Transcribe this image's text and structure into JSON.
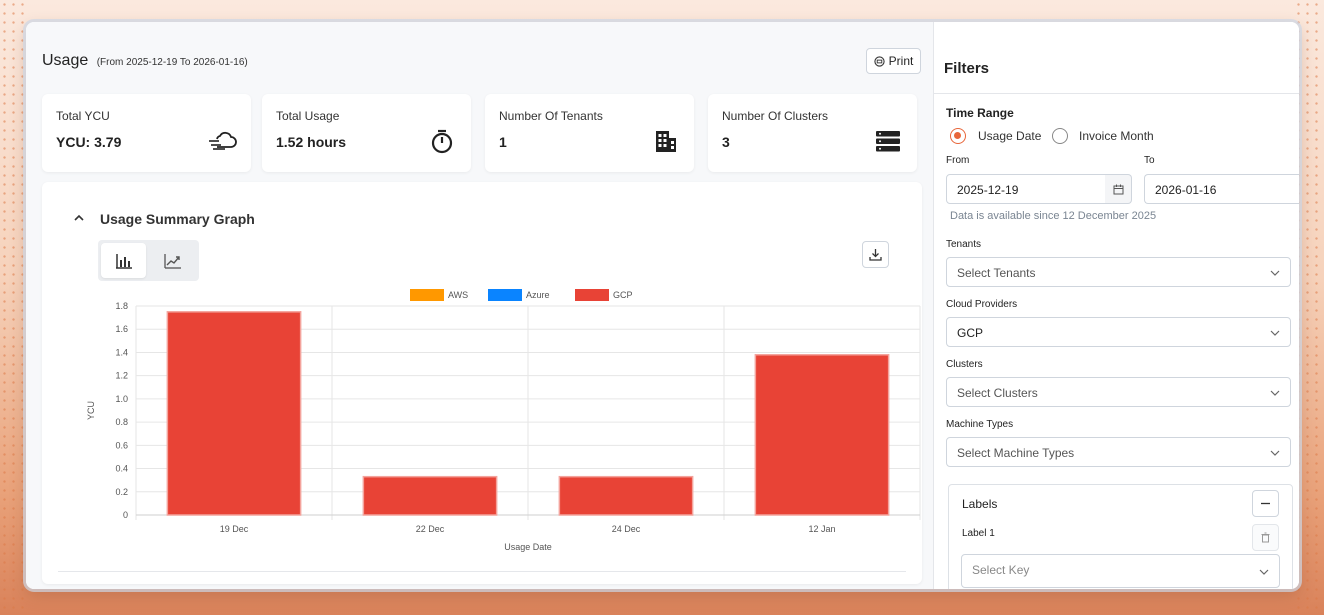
{
  "header": {
    "title": "Usage",
    "range": "(From 2025-12-19 To 2026-01-16)",
    "print_label": "Print"
  },
  "cards": [
    {
      "label": "Total YCU",
      "value": "YCU: 3.79",
      "icon": "cloud-speed-icon"
    },
    {
      "label": "Total Usage",
      "value": "1.52 hours",
      "icon": "stopwatch-icon"
    },
    {
      "label": "Number Of Tenants",
      "value": "1",
      "icon": "building-icon"
    },
    {
      "label": "Number Of Clusters",
      "value": "3",
      "icon": "server-stack-icon"
    }
  ],
  "graph": {
    "title": "Usage Summary Graph",
    "view_options": [
      "bar-chart-icon",
      "line-chart-icon"
    ],
    "active_view": "bar"
  },
  "chart_data": {
    "type": "bar",
    "categories": [
      "19 Dec",
      "22 Dec",
      "24 Dec",
      "12 Jan"
    ],
    "series": [
      {
        "name": "AWS",
        "color": "#ff9800",
        "values": [
          0,
          0,
          0,
          0
        ]
      },
      {
        "name": "Azure",
        "color": "#0a84ff",
        "values": [
          0,
          0,
          0,
          0
        ]
      },
      {
        "name": "GCP",
        "color": "#e84336",
        "values": [
          1.75,
          0.33,
          0.33,
          1.38
        ]
      }
    ],
    "xlabel": "Usage Date",
    "ylabel": "YCU",
    "ylim": [
      0,
      1.8
    ],
    "yticks": [
      "0",
      "0.2",
      "0.4",
      "0.6",
      "0.8",
      "1.0",
      "1.2",
      "1.4",
      "1.6",
      "1.8"
    ],
    "grid": true,
    "legend_position": "top"
  },
  "filters": {
    "title": "Filters",
    "time_range_label": "Time Range",
    "radio_options": [
      "Usage Date",
      "Invoice Month"
    ],
    "radio_selected": "Usage Date",
    "from_label": "From",
    "to_label": "To",
    "from_value": "2025-12-19",
    "to_value": "2026-01-16",
    "hint": "Data is available since 12 December 2025",
    "tenants_label": "Tenants",
    "tenants_placeholder": "Select Tenants",
    "cloud_label": "Cloud Providers",
    "cloud_value": "GCP",
    "clusters_label": "Clusters",
    "clusters_placeholder": "Select Clusters",
    "machine_label": "Machine Types",
    "machine_placeholder": "Select Machine Types",
    "labels_title": "Labels",
    "label1": "Label 1",
    "key_placeholder": "Select Key"
  },
  "colors": {
    "accent": "#e8663a",
    "gcp": "#e84336",
    "aws": "#ff9800",
    "azure": "#0a84ff"
  }
}
